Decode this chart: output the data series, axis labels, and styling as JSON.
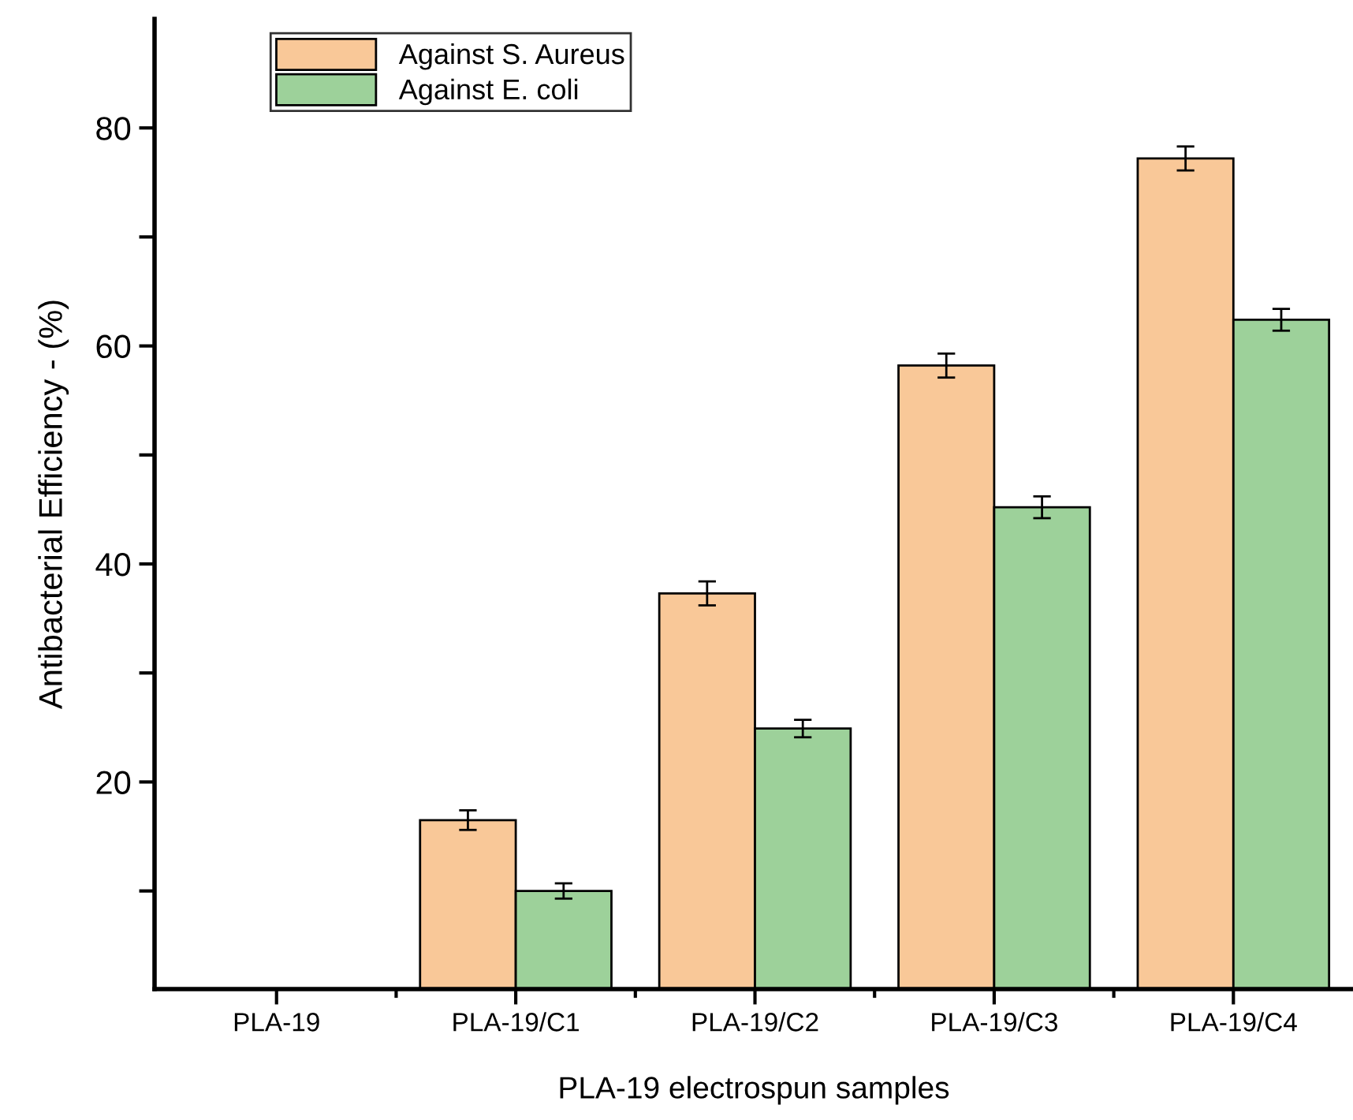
{
  "chart_data": {
    "type": "bar",
    "xlabel": "PLA-19 electrospun samples",
    "ylabel": "Antibacterial Efficiency - (%)",
    "categories": [
      "PLA-19",
      "PLA-19/C1",
      "PLA-19/C2",
      "PLA-19/C3",
      "PLA-19/C4"
    ],
    "series": [
      {
        "name": "Against S. Aureus",
        "color": "#f9c898",
        "values": [
          null,
          16.5,
          37.3,
          58.2,
          77.2
        ],
        "errors": [
          null,
          0.9,
          1.1,
          1.1,
          1.1
        ]
      },
      {
        "name": "Against E. coli",
        "color": "#9dd19a",
        "values": [
          null,
          10.0,
          24.9,
          45.2,
          62.4
        ],
        "errors": [
          null,
          0.7,
          0.8,
          1.0,
          1.0
        ]
      }
    ],
    "ylim": [
      1,
      90
    ],
    "yticks": [
      {
        "value": 10,
        "label": null
      },
      20,
      {
        "value": 30,
        "label": null
      },
      40,
      {
        "value": 50,
        "label": null
      },
      60,
      {
        "value": 70,
        "label": null
      },
      80
    ],
    "grid": false,
    "legend": "top left"
  }
}
